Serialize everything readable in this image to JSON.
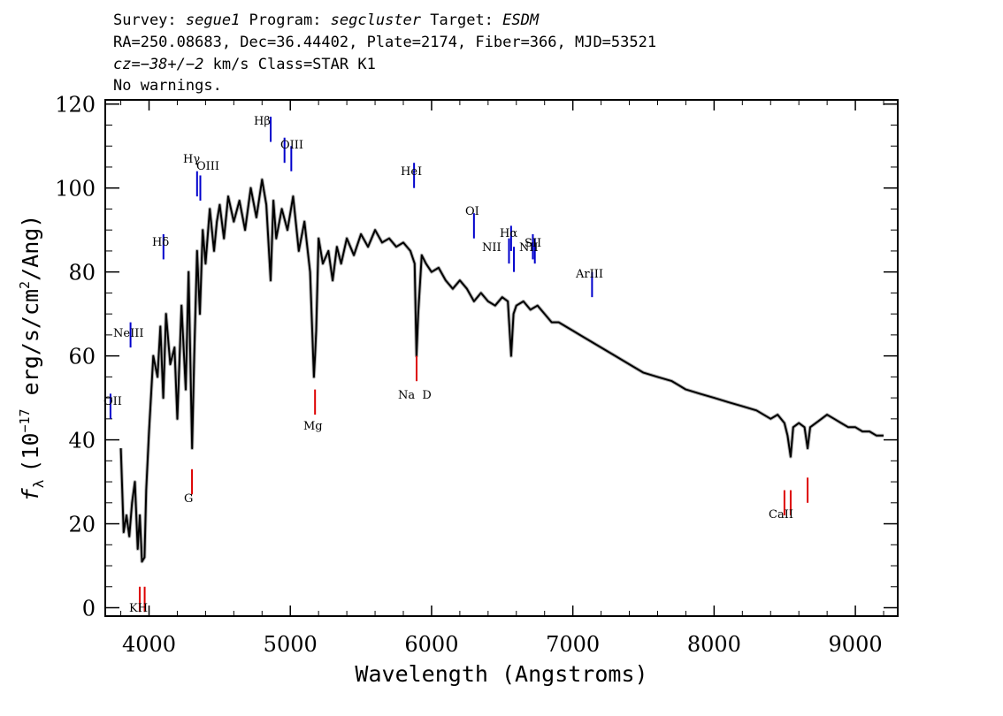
{
  "header": {
    "line1": {
      "survey_label": "Survey: ",
      "survey": "segue1",
      "program_label": " Program: ",
      "program": "segcluster",
      "target_label": " Target: ",
      "target": "ESDM"
    },
    "line2": "RA=250.08683, Dec=36.44402, Plate=2174, Fiber=366, MJD=53521",
    "line3": {
      "cz_italic": "cz=−38+/−2",
      "cz_rest": " km/s Class=STAR K1"
    },
    "line4": "No warnings."
  },
  "chart_data": {
    "type": "line",
    "xlabel": "Wavelength (Angstroms)",
    "ylabel_prefix": "f",
    "ylabel_sub": "λ",
    "ylabel_units": "(10",
    "ylabel_exp": "−17",
    "ylabel_units2": " erg/s/cm",
    "ylabel_exp2": "2",
    "ylabel_units3": "/Ang)",
    "xlim": [
      3690,
      9300
    ],
    "ylim": [
      -2,
      121
    ],
    "xticks": [
      4000,
      5000,
      6000,
      7000,
      8000,
      9000
    ],
    "xtick_labels": [
      "4000",
      "5000",
      "6000",
      "7000",
      "8000",
      "9000"
    ],
    "yticks": [
      0,
      20,
      40,
      60,
      80,
      100,
      120
    ],
    "ytick_labels": [
      "0",
      "20",
      "40",
      "60",
      "80",
      "100",
      "120"
    ],
    "colors": {
      "flux": "#000000",
      "error": "#b4b4b4",
      "emission": "#0000cc",
      "absorption": "#dd0000"
    },
    "series": [
      {
        "x": [
          3800,
          3820,
          3840,
          3860,
          3880,
          3900,
          3920,
          3935,
          3950,
          3968,
          3980,
          4000,
          4030,
          4060,
          4080,
          4101,
          4120,
          4150,
          4180,
          4200,
          4230,
          4260,
          4280,
          4305,
          4320,
          4340,
          4360,
          4380,
          4400,
          4430,
          4460,
          4480,
          4500,
          4530,
          4560,
          4600,
          4640,
          4680,
          4720,
          4760,
          4800,
          4830,
          4861,
          4880,
          4900,
          4940,
          4980,
          5020,
          5060,
          5100,
          5140,
          5167,
          5175,
          5183,
          5200,
          5230,
          5270,
          5300,
          5330,
          5360,
          5400,
          5450,
          5500,
          5550,
          5600,
          5650,
          5700,
          5750,
          5800,
          5850,
          5880,
          5893,
          5905,
          5930,
          5960,
          6000,
          6050,
          6100,
          6150,
          6200,
          6250,
          6300,
          6350,
          6400,
          6450,
          6500,
          6540,
          6563,
          6580,
          6600,
          6650,
          6700,
          6750,
          6800,
          6850,
          6900,
          6950,
          7000,
          7050,
          7100,
          7150,
          7200,
          7300,
          7400,
          7500,
          7600,
          7700,
          7800,
          7900,
          8000,
          8100,
          8200,
          8300,
          8400,
          8450,
          8498,
          8520,
          8542,
          8560,
          8600,
          8640,
          8662,
          8680,
          8720,
          8760,
          8800,
          8850,
          8900,
          8950,
          9000,
          9050,
          9100,
          9150,
          9200
        ],
        "values": [
          38,
          18,
          22,
          17,
          25,
          30,
          14,
          22,
          11,
          12,
          28,
          42,
          60,
          55,
          67,
          50,
          70,
          58,
          62,
          45,
          72,
          52,
          80,
          38,
          60,
          85,
          70,
          90,
          82,
          95,
          85,
          92,
          96,
          88,
          98,
          92,
          97,
          90,
          100,
          93,
          102,
          96,
          78,
          97,
          88,
          95,
          90,
          98,
          85,
          92,
          80,
          55,
          60,
          66,
          88,
          82,
          85,
          78,
          86,
          82,
          88,
          84,
          89,
          86,
          90,
          87,
          88,
          86,
          87,
          85,
          82,
          60,
          70,
          84,
          82,
          80,
          81,
          78,
          76,
          78,
          76,
          73,
          75,
          73,
          72,
          74,
          73,
          60,
          70,
          72,
          73,
          71,
          72,
          70,
          68,
          68,
          67,
          66,
          65,
          64,
          63,
          62,
          60,
          58,
          56,
          55,
          54,
          52,
          51,
          50,
          49,
          48,
          47,
          45,
          46,
          44,
          41,
          36,
          43,
          44,
          43,
          38,
          43,
          44,
          45,
          46,
          45,
          44,
          43,
          43,
          42,
          42,
          41,
          41
        ]
      }
    ],
    "emission_lines": [
      {
        "label": "OII",
        "x": 3727,
        "y": 45
      },
      {
        "label": "NeIII",
        "x": 3869,
        "y": 62
      },
      {
        "label": "Hδ",
        "x": 4102,
        "y": 83
      },
      {
        "label": "Hγ",
        "x": 4340,
        "y": 98
      },
      {
        "label": "OIII",
        "x": 4363,
        "y": 97
      },
      {
        "label": "Hβ",
        "x": 4861,
        "y": 111
      },
      {
        "label": "OIII",
        "x": 4959,
        "y": 106
      },
      {
        "label": "OIII",
        "x": 5007,
        "y": 104
      },
      {
        "label": "HeI",
        "x": 5876,
        "y": 100
      },
      {
        "label": "OI",
        "x": 6300,
        "y": 88
      },
      {
        "label": "NII",
        "x": 6548,
        "y": 82
      },
      {
        "label": "Hα",
        "x": 6563,
        "y": 85
      },
      {
        "label": "NII",
        "x": 6583,
        "y": 80
      },
      {
        "label": "SII",
        "x": 6717,
        "y": 83
      },
      {
        "label": "SII",
        "x": 6731,
        "y": 82
      },
      {
        "label": "ArIII",
        "x": 7136,
        "y": 74
      }
    ],
    "absorption_lines": [
      {
        "label": "K",
        "x": 3934,
        "y": 5
      },
      {
        "label": "H",
        "x": 3969,
        "y": 5
      },
      {
        "label": "G",
        "x": 4304,
        "y": 33
      },
      {
        "label": "Mg",
        "x": 5175,
        "y": 52
      },
      {
        "label": "Na",
        "x": 5894,
        "y": 60
      },
      {
        "label": "D",
        "x": 5894,
        "y": 60
      },
      {
        "label": "CaII",
        "x": 8498,
        "y": 28
      },
      {
        "label": "CaII",
        "x": 8542,
        "y": 28
      },
      {
        "label": "CaII",
        "x": 8662,
        "y": 31
      }
    ],
    "label_texts": {
      "OII": "OII",
      "NeIII": "NeIII",
      "Hdelta": "Hδ",
      "Hgamma": "Hγ",
      "OIII_a": "OIII",
      "Hbeta": "Hβ",
      "OIII_b": "OIII",
      "HeI": "HeI",
      "OI": "OI",
      "NII_a": "NII",
      "Halpha": "Hα",
      "NII_b": "NII",
      "SII": "SII",
      "ArIII": "ArIII",
      "KH": "KH",
      "G": "G",
      "Mg": "Mg",
      "NaD": "Na  D",
      "CaII": "CaII"
    }
  }
}
